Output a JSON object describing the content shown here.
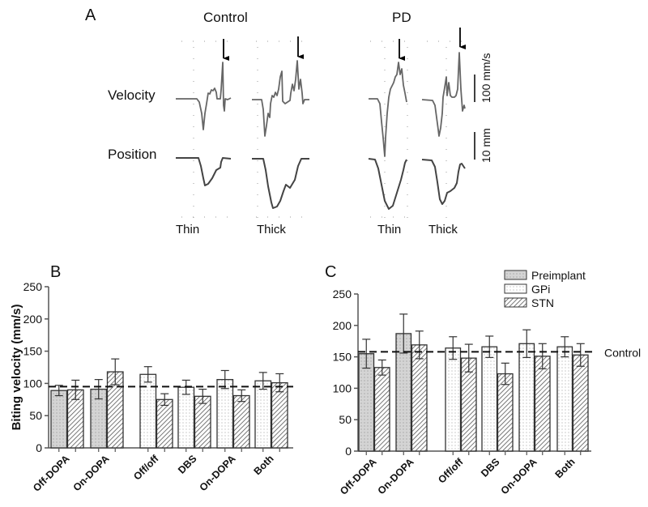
{
  "panel_a": {
    "panel_letter": "A",
    "group_control": "Control",
    "group_pd": "PD",
    "row_velocity": "Velocity",
    "row_position": "Position",
    "trace_labels": [
      "Thin",
      "Thick",
      "Thin",
      "Thick"
    ],
    "scale_velocity": "100 mm/s",
    "scale_position": "10 mm"
  },
  "chart_data": [
    {
      "type": "bar",
      "panel_letter": "B",
      "title": "",
      "xlabel": "",
      "ylabel": "Biting velocity (mm/s)",
      "ylim": [
        0,
        250
      ],
      "yticks": [
        "0",
        "50",
        "100",
        "150",
        "200",
        "250"
      ],
      "categories": [
        "Off-DOPA",
        "On-DOPA",
        "Off/off",
        "DBS",
        "On-DOPA",
        "Both"
      ],
      "series": [
        {
          "name": "Preimplant",
          "values": [
            89,
            91,
            null,
            null,
            null,
            null
          ],
          "errors": [
            8,
            15,
            null,
            null,
            null,
            null
          ]
        },
        {
          "name": "GPi",
          "values": [
            null,
            null,
            114,
            94,
            106,
            104
          ],
          "errors": [
            null,
            null,
            12,
            11,
            14,
            13
          ]
        },
        {
          "name": "STN",
          "values": [
            90,
            118,
            75,
            80,
            81,
            101
          ],
          "errors": [
            15,
            20,
            9,
            11,
            9,
            14
          ]
        }
      ],
      "reference_line": {
        "label": "",
        "value": 95
      }
    },
    {
      "type": "bar",
      "panel_letter": "C",
      "title": "",
      "xlabel": "",
      "ylabel": "",
      "ylim": [
        0,
        250
      ],
      "yticks": [
        "0",
        "50",
        "100",
        "150",
        "200",
        "250"
      ],
      "categories": [
        "Off-DOPA",
        "On-DOPA",
        "Off/off",
        "DBS",
        "On-DOPA",
        "Both"
      ],
      "series": [
        {
          "name": "Preimplant",
          "values": [
            155,
            187,
            null,
            null,
            null,
            null
          ],
          "errors": [
            23,
            31,
            null,
            null,
            null,
            null
          ]
        },
        {
          "name": "GPi",
          "values": [
            null,
            null,
            164,
            166,
            171,
            166
          ],
          "errors": [
            null,
            null,
            18,
            17,
            22,
            16
          ]
        },
        {
          "name": "STN",
          "values": [
            133,
            169,
            148,
            123,
            151,
            153
          ],
          "errors": [
            12,
            22,
            22,
            17,
            20,
            18
          ]
        }
      ],
      "reference_line": {
        "label": "Control",
        "value": 158
      },
      "legend": {
        "position": "top-right",
        "entries": [
          "Preimplant",
          "GPi",
          "STN"
        ]
      }
    }
  ]
}
